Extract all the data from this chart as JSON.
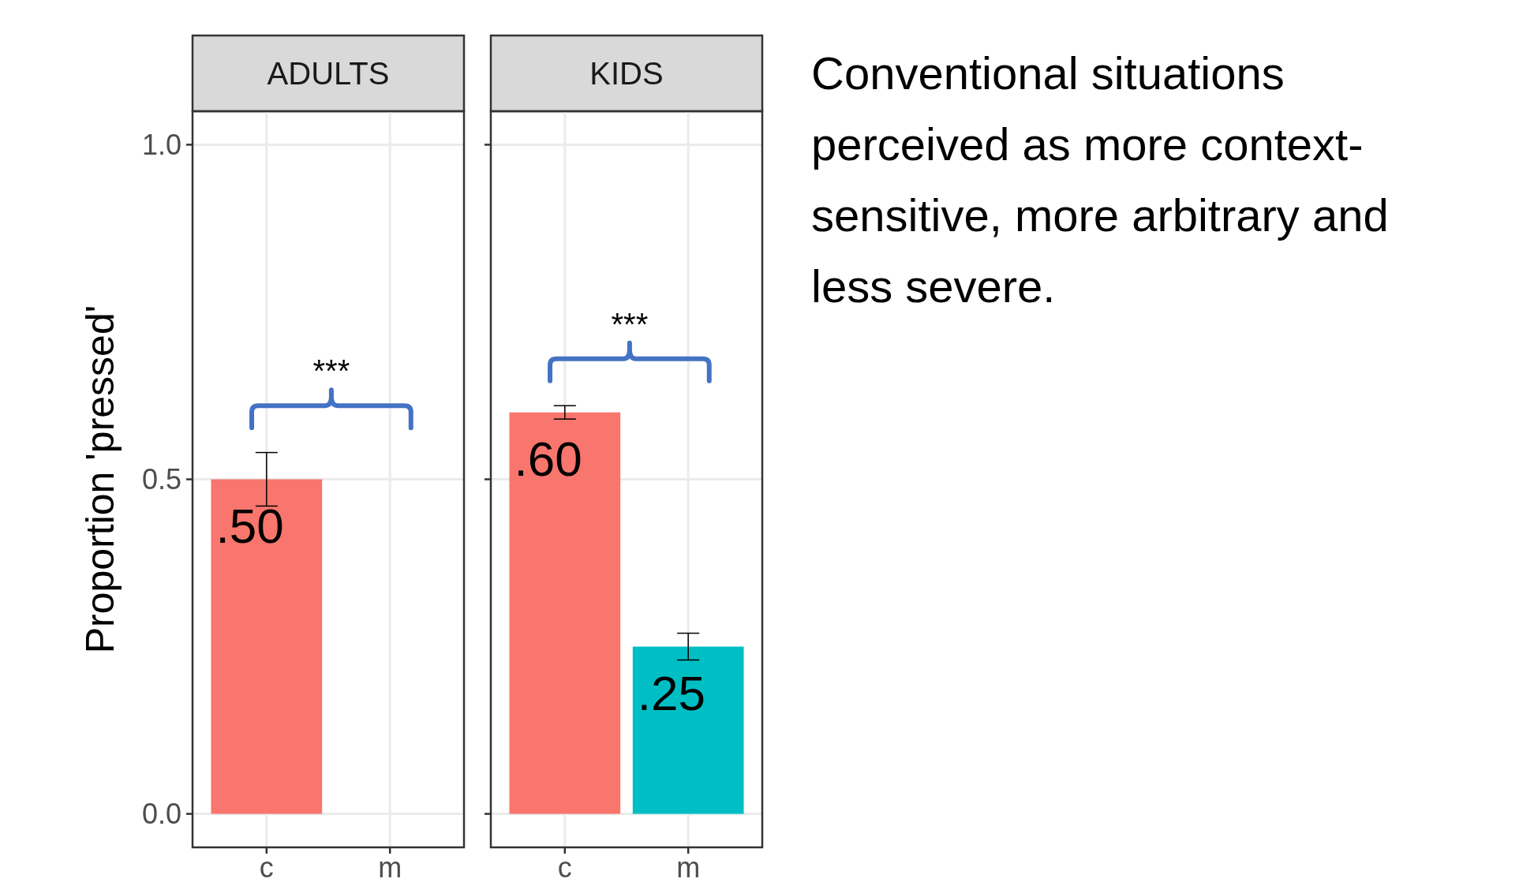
{
  "chart_data": [
    {
      "type": "bar",
      "title": "ADULTS",
      "ylabel": "Proportion 'pressed'",
      "categories": [
        "c",
        "m"
      ],
      "values": [
        0.5,
        null
      ],
      "color": "#f8766d",
      "errors": [
        [
          0.46,
          0.54
        ],
        null
      ],
      "value_labels": [
        ".50",
        null
      ],
      "ylim": [
        -0.05,
        1.05
      ],
      "yticks": [
        {
          "value": 0,
          "label": "0.0"
        },
        0.5,
        {
          "value": 1,
          "label": "1.0"
        }
      ],
      "grid": true,
      "annotations": [
        "***"
      ]
    },
    {
      "type": "bar",
      "title": "KIDS",
      "categories": [
        "c",
        "m"
      ],
      "values": [
        0.6,
        0.25
      ],
      "colors": [
        "#f8766d",
        "#00bfc4"
      ],
      "errors": [
        [
          0.59,
          0.61
        ],
        [
          0.23,
          0.27
        ]
      ],
      "value_labels": [
        ".60",
        ".25"
      ],
      "ylim": [
        -0.05,
        1.05
      ],
      "yticks": [
        0,
        0.5,
        1
      ],
      "grid": true,
      "tick_labels": "x",
      "annotations": [
        "***"
      ]
    },
    {
      "type": "other",
      "annotations": [
        "Conventional situations perceived as more context-sensitive, more arbitrary and less severe."
      ]
    }
  ]
}
